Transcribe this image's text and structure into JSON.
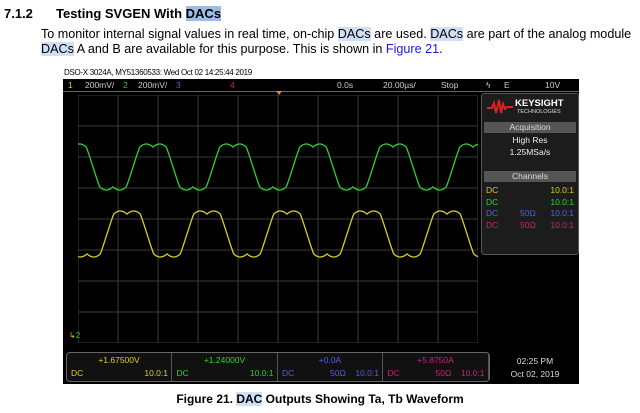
{
  "section": {
    "number": "7.1.2",
    "title_prefix": "Testing SVGEN With ",
    "title_highlight": "DACs"
  },
  "paragraph": {
    "line1_a": "To monitor internal signal values in real time, on-chip ",
    "line1_b": "DACs",
    "line1_c": " are used. ",
    "line1_d": "DACs",
    "line1_e": " are part of the analog module",
    "line2_a": "DACs",
    "line2_b": " A and B are available for this purpose. This is shown in ",
    "line2_link": "Figure 21",
    "line2_c": "."
  },
  "scope": {
    "title": "DSO-X 3024A, MY51360533: Wed Oct 02 14:25:44 2019",
    "topbar": {
      "ch1": "1",
      "ch1_scale": "200mV/",
      "ch2": "2",
      "ch2_scale": "200mV/",
      "ch3": "3",
      "ch4": "4",
      "delay": "0.0s",
      "timebase": "20.00µs/",
      "state": "Stop",
      "trigger_icon": "trigger-edge-icon",
      "trigger_mode": "E",
      "trigger_level": "10V"
    },
    "brand": {
      "name": "KEYSIGHT",
      "sub": "TECHNOLOGIES"
    },
    "acquisition": {
      "header": "Acquisition",
      "mode": "High Res",
      "rate": "1.25MSa/s"
    },
    "channels_header": "Channels",
    "channels": [
      {
        "coupling": "DC",
        "imp": "",
        "probe": "10.0:1",
        "color": "#d8d020",
        "offset": "+1.67500V"
      },
      {
        "coupling": "DC",
        "imp": "",
        "probe": "10.0:1",
        "color": "#30d030",
        "offset": "+1.24000V"
      },
      {
        "coupling": "DC",
        "imp": "50Ω",
        "probe": "10.0:1",
        "color": "#5060e0",
        "offset": "+0.0A"
      },
      {
        "coupling": "DC",
        "imp": "50Ω",
        "probe": "10.0:1",
        "color": "#d0207a",
        "offset": "+5.8750A"
      }
    ],
    "ground_marker": "2",
    "clock": {
      "time": "02:25 PM",
      "date": "Oct 02, 2019"
    }
  },
  "caption": {
    "prefix": "Figure 21. ",
    "highlight": "DAC",
    "suffix": " Outputs Showing Ta, Tb Waveform"
  }
}
